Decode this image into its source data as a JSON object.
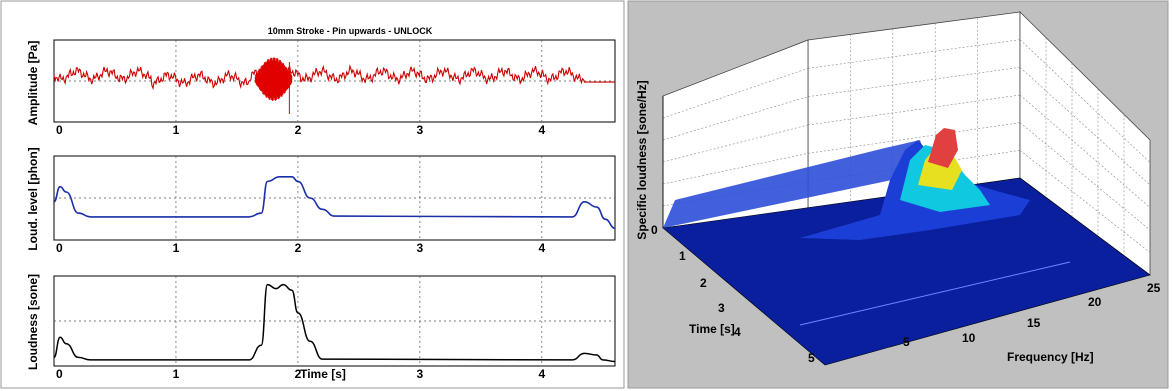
{
  "figure": {
    "left_title": "10mm Stroke - Pin upwards - UNLOCK"
  },
  "chart_data": [
    {
      "type": "line",
      "ylabel": "Amplitude [Pa]",
      "xlim": [
        0,
        4.6
      ],
      "xticks": [
        "0",
        "1",
        "2",
        "3",
        "4"
      ],
      "grid": true,
      "series": [
        {
          "color": "#cc0000",
          "description_points": {
            "x": [
              0,
              0.2,
              0.5,
              0.8,
              1.0,
              1.3,
              1.6,
              1.65,
              1.95,
              2.0,
              2.3,
              2.6,
              3.0,
              3.4,
              3.8,
              4.2,
              4.35,
              4.6
            ],
            "y": [
              0.55,
              0.5,
              0.42,
              0.3,
              0.35,
              0.38,
              0.4,
              0.4,
              0.5,
              0.35,
              0.32,
              0.38,
              0.45,
              0.42,
              0.48,
              0.52,
              0.0,
              0.0
            ]
          },
          "burst_range": [
            1.65,
            1.95
          ]
        }
      ]
    },
    {
      "type": "line",
      "ylabel": "Loud. level [phon]",
      "xlim": [
        0,
        4.6
      ],
      "xticks": [
        "0",
        "1",
        "2",
        "3",
        "4"
      ],
      "grid": true,
      "series": [
        {
          "color": "#1a2fa8",
          "x": [
            0,
            0.05,
            0.1,
            0.2,
            0.3,
            1.6,
            1.7,
            1.75,
            1.85,
            1.95,
            2.0,
            2.1,
            2.2,
            2.3,
            4.25,
            4.35,
            4.45,
            4.52,
            4.6
          ],
          "y": [
            0.45,
            0.65,
            0.58,
            0.3,
            0.25,
            0.25,
            0.3,
            0.72,
            0.78,
            0.78,
            0.72,
            0.5,
            0.35,
            0.26,
            0.25,
            0.45,
            0.38,
            0.22,
            0.1
          ]
        }
      ]
    },
    {
      "type": "line",
      "ylabel": "Loudness [sone]",
      "xlabel": "Time [s]",
      "xlim": [
        0,
        4.6
      ],
      "xticks": [
        "0",
        "1",
        "2",
        "3",
        "4"
      ],
      "grid": true,
      "series": [
        {
          "color": "#000000",
          "x": [
            0,
            0.05,
            0.1,
            0.2,
            0.3,
            1.6,
            1.7,
            1.75,
            1.82,
            1.88,
            1.95,
            2.0,
            2.1,
            2.2,
            4.25,
            4.35,
            4.45,
            4.5,
            4.6
          ],
          "y": [
            0.05,
            0.3,
            0.22,
            0.05,
            0.02,
            0.02,
            0.2,
            0.95,
            0.9,
            0.95,
            0.88,
            0.6,
            0.25,
            0.03,
            0.02,
            0.1,
            0.08,
            0.02,
            0.0
          ]
        }
      ]
    },
    {
      "type": "surface3d",
      "zlabel": "Specific loudness [sone/Hz]",
      "ylabel": "Time [s]",
      "xlabel": "Frequency [Hz]",
      "time_ticks": [
        "0",
        "1",
        "2",
        "3",
        "4",
        "5"
      ],
      "freq_ticks": [
        "5",
        "10",
        "15",
        "20",
        "25"
      ],
      "colormap": "jet"
    }
  ]
}
